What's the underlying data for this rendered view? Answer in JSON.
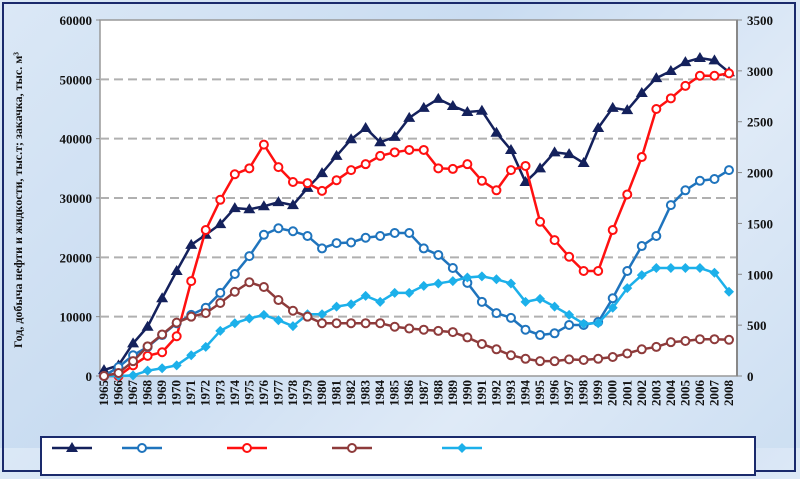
{
  "chart_data": {
    "type": "line",
    "title": "",
    "xlabel": "",
    "ylabel": "Год, добыча нефти и жидкости, тыс.т; закачка, тыс. м³",
    "ylim": [
      0,
      60000
    ],
    "y2lim": [
      0,
      3500
    ],
    "yticks": [
      "0",
      "10000",
      "20000",
      "30000",
      "40000",
      "50000",
      "60000"
    ],
    "y2ticks": [
      "0",
      "500",
      "1000",
      "1500",
      "2000",
      "2500",
      "3000",
      "3500"
    ],
    "grid": "horizontal dashed",
    "legend": "bottom",
    "x": [
      "1965",
      "1966",
      "1967",
      "1968",
      "1969",
      "1970",
      "1971",
      "1972",
      "1973",
      "1974",
      "1975",
      "1976",
      "1977",
      "1978",
      "1979",
      "1980",
      "1981",
      "1982",
      "1983",
      "1984",
      "1985",
      "1986",
      "1987",
      "1988",
      "1989",
      "1990",
      "1991",
      "1992",
      "1993",
      "1994",
      "1995",
      "1996",
      "1997",
      "1998",
      "1999",
      "2000",
      "2001",
      "2002",
      "2003",
      "2004",
      "2005",
      "2006",
      "2007",
      "2008"
    ],
    "series": [
      {
        "name": "series-navy-triangle",
        "color": "#14215c",
        "marker": "triangle",
        "values": [
          1000,
          1800,
          5500,
          8300,
          13100,
          17700,
          22100,
          23800,
          25600,
          28300,
          28100,
          28600,
          29300,
          28800,
          31700,
          34200,
          37100,
          39900,
          41800,
          39400,
          40300,
          43500,
          45200,
          46700,
          45500,
          44500,
          44700,
          41000,
          38100,
          32700,
          35000,
          37700,
          37400,
          35900,
          41800,
          45200,
          44800,
          47700,
          50200,
          51400,
          52900,
          53600,
          53200,
          51200
        ]
      },
      {
        "name": "series-red-circle",
        "color": "#ff1010",
        "marker": "circle",
        "values": [
          0,
          0,
          1800,
          3400,
          4000,
          6700,
          16000,
          24600,
          29700,
          34000,
          35000,
          39000,
          35200,
          32700,
          32500,
          31200,
          33000,
          34700,
          35700,
          37100,
          37700,
          38100,
          38100,
          35000,
          34900,
          35700,
          32900,
          31300,
          34700,
          35400,
          26000,
          22900,
          20100,
          17700,
          17700,
          24600,
          30600,
          36900,
          45000,
          46800,
          48900,
          50600,
          50600,
          51000
        ]
      },
      {
        "name": "series-blue-circle",
        "color": "#1f74bd",
        "marker": "circle",
        "values": [
          0,
          1500,
          3500,
          4900,
          6900,
          8900,
          10300,
          11500,
          14000,
          17200,
          20200,
          23800,
          24900,
          24400,
          23600,
          21500,
          22400,
          22500,
          23300,
          23600,
          24100,
          24100,
          21500,
          20400,
          18200,
          15700,
          12500,
          10600,
          9800,
          7800,
          6900,
          7200,
          8600,
          8600,
          9100,
          13100,
          17700,
          21900,
          23600,
          28800,
          31300,
          32900,
          33200,
          34700
        ]
      },
      {
        "name": "series-cyan-diamond",
        "color": "#1cb0ea",
        "marker": "diamond",
        "values": [
          0,
          0,
          100,
          900,
          1300,
          1800,
          3500,
          4900,
          7600,
          8900,
          9700,
          10300,
          9400,
          8400,
          10400,
          10400,
          11700,
          12100,
          13500,
          12500,
          14000,
          14000,
          15200,
          15600,
          16000,
          16600,
          16800,
          16300,
          15600,
          12500,
          13000,
          11700,
          10300,
          8800,
          8900,
          11500,
          14800,
          17000,
          18200,
          18200,
          18200,
          18200,
          17400,
          14200
        ]
      },
      {
        "name": "series-brown-circle",
        "color": "#8e3b3b",
        "marker": "circle",
        "values": [
          0,
          500,
          2500,
          5000,
          7000,
          9000,
          10000,
          10600,
          12300,
          14200,
          15800,
          15000,
          12800,
          11000,
          10000,
          8900,
          8900,
          8900,
          8900,
          8900,
          8300,
          8000,
          7800,
          7600,
          7400,
          6500,
          5400,
          4500,
          3500,
          2900,
          2500,
          2500,
          2800,
          2700,
          2900,
          3200,
          3800,
          4500,
          4900,
          5700,
          5900,
          6200,
          6200,
          6100
        ]
      }
    ]
  }
}
